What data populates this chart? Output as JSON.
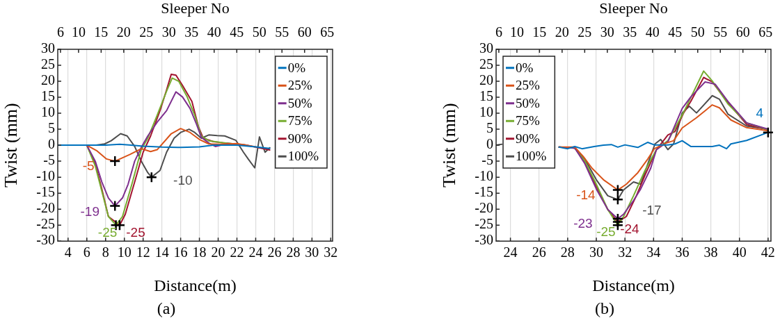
{
  "chart_data": [
    {
      "type": "line",
      "title": "(a)",
      "xlabel": "Distance(m)",
      "ylabel": "Twist (mm)",
      "x2label": "Sleeper No",
      "xlim": [
        2.9,
        32.2
      ],
      "xticks": [
        4,
        6,
        8,
        10,
        12,
        14,
        16,
        18,
        20,
        22,
        24,
        26,
        28,
        30,
        32
      ],
      "x2lim": [
        5.4,
        66.2
      ],
      "x2ticks": [
        6,
        10,
        15,
        20,
        25,
        30,
        35,
        40,
        45,
        50,
        55,
        60,
        65
      ],
      "ylim": [
        -30,
        30
      ],
      "yticks": [
        -30,
        -25,
        -20,
        -15,
        -10,
        -5,
        0,
        5,
        10,
        15,
        20,
        25,
        30
      ],
      "grid": "x",
      "legend": "top right",
      "series": [
        {
          "name": "0%",
          "color": "#0072bd",
          "x": [
            2.9,
            8,
            9.5,
            10.5,
            12,
            14,
            16,
            18,
            19.5,
            22,
            24,
            25.5
          ],
          "values": [
            0,
            0,
            0.3,
            0.1,
            -0.3,
            -0.6,
            -0.7,
            -0.5,
            0,
            0,
            -0.5,
            -1
          ]
        },
        {
          "name": "25%",
          "color": "#d95319",
          "x": [
            2.9,
            6,
            7.1,
            8.1,
            9,
            10.6,
            11.8,
            12.8,
            13.5,
            15,
            16,
            17,
            18,
            19,
            20,
            22,
            24
          ],
          "values": [
            0,
            0,
            -1.8,
            -4.3,
            -5,
            -2.9,
            -1.1,
            -2,
            -1.4,
            3.6,
            5.2,
            4,
            1.8,
            0.4,
            0.3,
            0.5,
            -0.5
          ]
        },
        {
          "name": "50%",
          "color": "#7e2f8e",
          "x": [
            2.9,
            6,
            6.9,
            7.6,
            8.3,
            9,
            9.8,
            10.4,
            11.1,
            11.8,
            12.5,
            13.5,
            14.5,
            15.5,
            16.2,
            17,
            17.7,
            18.2,
            19,
            19.7,
            21,
            23
          ],
          "values": [
            0,
            0,
            -5,
            -11.5,
            -16.5,
            -19,
            -16.5,
            -12.2,
            -5,
            -0.7,
            2.9,
            7.2,
            10.8,
            16.7,
            15.1,
            11.5,
            6.5,
            2.5,
            0.7,
            -0.4,
            0.5,
            0
          ]
        },
        {
          "name": "75%",
          "color": "#77ac30",
          "x": [
            2.9,
            6,
            6.9,
            7.6,
            8.3,
            9.1,
            9.8,
            10.8,
            11.8,
            12.5,
            13.5,
            14.5,
            15.1,
            15.8,
            16.7,
            17.5,
            18.2,
            19,
            20.5,
            23
          ],
          "values": [
            0,
            0,
            -6.5,
            -14.4,
            -22.3,
            -25,
            -22.3,
            -12.2,
            -1.4,
            2.2,
            9.4,
            16.9,
            21,
            20,
            15.1,
            9.4,
            2.9,
            1.4,
            0.8,
            0
          ]
        },
        {
          "name": "90%",
          "color": "#a2142f",
          "x": [
            2.9,
            6,
            6.9,
            7.6,
            8.3,
            9.5,
            10.1,
            11.1,
            12,
            12.8,
            13.8,
            14.5,
            15,
            15.5,
            16.2,
            17.2,
            17.9,
            18.4,
            19.5,
            20.7,
            23,
            25.5
          ],
          "values": [
            0,
            0,
            -5.8,
            -13.7,
            -22.3,
            -25,
            -21.6,
            -11.5,
            -2.2,
            2.9,
            10.8,
            17.3,
            22.2,
            21.9,
            18.7,
            13.7,
            5.8,
            2.2,
            1.1,
            0.7,
            0,
            -1.5
          ]
        },
        {
          "name": "100%",
          "color": "#4d4d4d",
          "x": [
            2.9,
            7,
            7.9,
            8.6,
            9.6,
            10.3,
            11.1,
            11.8,
            12.5,
            12.9,
            13.8,
            14.5,
            15.3,
            16,
            16.9,
            17.5,
            18.2,
            19,
            19.9,
            20.7,
            21.9,
            22.7,
            23.2,
            23.9,
            24.4,
            25,
            25.5
          ],
          "values": [
            0,
            0,
            0.4,
            1.4,
            3.6,
            2.9,
            -0.4,
            -5,
            -8.6,
            -10,
            -7.9,
            -2.2,
            2.2,
            4,
            5,
            4,
            2.2,
            3.2,
            3,
            2.9,
            1.5,
            -2.2,
            -4.3,
            -7.1,
            2.6,
            -2.2,
            -0.8
          ]
        }
      ],
      "annotations": [
        {
          "text": "-5",
          "x": 9,
          "y": -5
        },
        {
          "text": "-19",
          "x": 9,
          "y": -19
        },
        {
          "text": "-25",
          "x": 9.1,
          "y": -25
        },
        {
          "text": "-25",
          "x": 9.5,
          "y": -25
        },
        {
          "text": "-10",
          "x": 12.9,
          "y": -10
        }
      ]
    },
    {
      "type": "line",
      "title": "(b)",
      "xlabel": "Distance(m)",
      "ylabel": "Twist (mm)",
      "x2label": "Sleeper No",
      "xlim": [
        23,
        42.2
      ],
      "xticks": [
        24,
        26,
        28,
        30,
        32,
        34,
        36,
        38,
        40,
        42
      ],
      "x2lim": [
        5.4,
        66.2
      ],
      "x2ticks": [
        6,
        10,
        15,
        20,
        25,
        30,
        35,
        40,
        45,
        50,
        55,
        60,
        65
      ],
      "ylim": [
        -30,
        30
      ],
      "yticks": [
        -30,
        -25,
        -20,
        -15,
        -10,
        -5,
        0,
        5,
        10,
        15,
        20,
        25,
        30
      ],
      "grid": "x",
      "legend": "top left",
      "series": [
        {
          "name": "0%",
          "color": "#0072bd",
          "x": [
            27.4,
            28,
            28.5,
            29,
            29.85,
            30.5,
            31.05,
            31.5,
            32,
            32.9,
            33.6,
            34.05,
            35,
            35.5,
            36,
            36.6,
            38.1,
            38.6,
            39.1,
            39.4,
            40.5,
            42
          ],
          "values": [
            -0.6,
            -1.1,
            -0.4,
            -1.1,
            -0.4,
            0,
            0.2,
            -0.6,
            0.1,
            -0.7,
            0.9,
            0.1,
            0.1,
            0.4,
            1.4,
            -0.4,
            -0.4,
            0,
            -1.1,
            0.4,
            1.5,
            4
          ]
        },
        {
          "name": "25%",
          "color": "#d95319",
          "x": [
            27.4,
            28.5,
            29.1,
            29.7,
            30.5,
            31.5,
            32.1,
            32.9,
            33.6,
            34.05,
            34.9,
            35.4,
            36,
            37,
            38.1,
            38.6,
            39.4,
            40.5,
            42
          ],
          "values": [
            -0.6,
            -0.6,
            -3.6,
            -7.2,
            -10.8,
            -14,
            -12.2,
            -8.6,
            -4.3,
            -1.1,
            0.7,
            1.4,
            5.4,
            8.6,
            12.6,
            11.7,
            7.9,
            5.5,
            4.5
          ]
        },
        {
          "name": "50%",
          "color": "#7e2f8e",
          "x": [
            27.4,
            28.5,
            29.2,
            30,
            30.8,
            31.5,
            31.9,
            32.6,
            33.1,
            33.8,
            34.2,
            35,
            36,
            36.6,
            37.6,
            38.3,
            39.2,
            40.5,
            42
          ],
          "values": [
            -0.6,
            -0.9,
            -5.8,
            -13.7,
            -20.1,
            -23,
            -21.6,
            -17.3,
            -13.7,
            -7.2,
            -1.4,
            1.1,
            11.5,
            15.1,
            19.8,
            19.1,
            13.7,
            7,
            5
          ]
        },
        {
          "name": "75%",
          "color": "#77ac30",
          "x": [
            27.4,
            28.5,
            29.2,
            30,
            30.8,
            31.5,
            31.9,
            32.6,
            33.4,
            34.2,
            35,
            36,
            37.5,
            38.1,
            39.2,
            40.5,
            42
          ],
          "values": [
            -0.6,
            -0.9,
            -5,
            -12.2,
            -20.1,
            -25,
            -22.3,
            -15.8,
            -7.9,
            -1.4,
            1.4,
            9.4,
            23.2,
            20.1,
            12.9,
            7,
            4.8
          ]
        },
        {
          "name": "90%",
          "color": "#a2142f",
          "x": [
            27.4,
            28.5,
            29.2,
            30,
            30.8,
            31.5,
            32.1,
            32.8,
            33.4,
            34.2,
            35,
            35.5,
            36.1,
            36.6,
            37.5,
            38.1,
            39.2,
            40.5,
            42
          ],
          "values": [
            -0.6,
            -0.9,
            -5.4,
            -12.9,
            -20.1,
            -24,
            -22.3,
            -15.8,
            -9.4,
            -1.4,
            3.2,
            4.3,
            10.1,
            13.7,
            21.2,
            19.8,
            13.3,
            6.5,
            4.8
          ]
        },
        {
          "name": "100%",
          "color": "#4d4d4d",
          "x": [
            23,
            23.4,
            27.4,
            28.5,
            29.2,
            30,
            30.8,
            31.5,
            31.9,
            32.6,
            33.1,
            33.6,
            34.1,
            34.5,
            35,
            35.4,
            36,
            36.5,
            37,
            38.1,
            38.6,
            39.2,
            40.5,
            42
          ],
          "values": [
            0,
            0.3,
            null,
            -0.9,
            -4.3,
            -10.8,
            -15.8,
            -17,
            -14,
            -11.5,
            -12.2,
            -5.8,
            0.4,
            1.8,
            -1.4,
            0.4,
            10.1,
            12.2,
            10.1,
            15.5,
            14.4,
            9.7,
            6,
            5
          ]
        }
      ],
      "annotations": [
        {
          "text": "-14",
          "x": 31.5,
          "y": -14
        },
        {
          "text": "-23",
          "x": 31.5,
          "y": -23
        },
        {
          "text": "-25",
          "x": 31.5,
          "y": -25
        },
        {
          "text": "-24",
          "x": 31.5,
          "y": -24
        },
        {
          "text": "-17",
          "x": 31.5,
          "y": -17
        },
        {
          "text": "4",
          "x": 42,
          "y": 4
        }
      ]
    }
  ]
}
